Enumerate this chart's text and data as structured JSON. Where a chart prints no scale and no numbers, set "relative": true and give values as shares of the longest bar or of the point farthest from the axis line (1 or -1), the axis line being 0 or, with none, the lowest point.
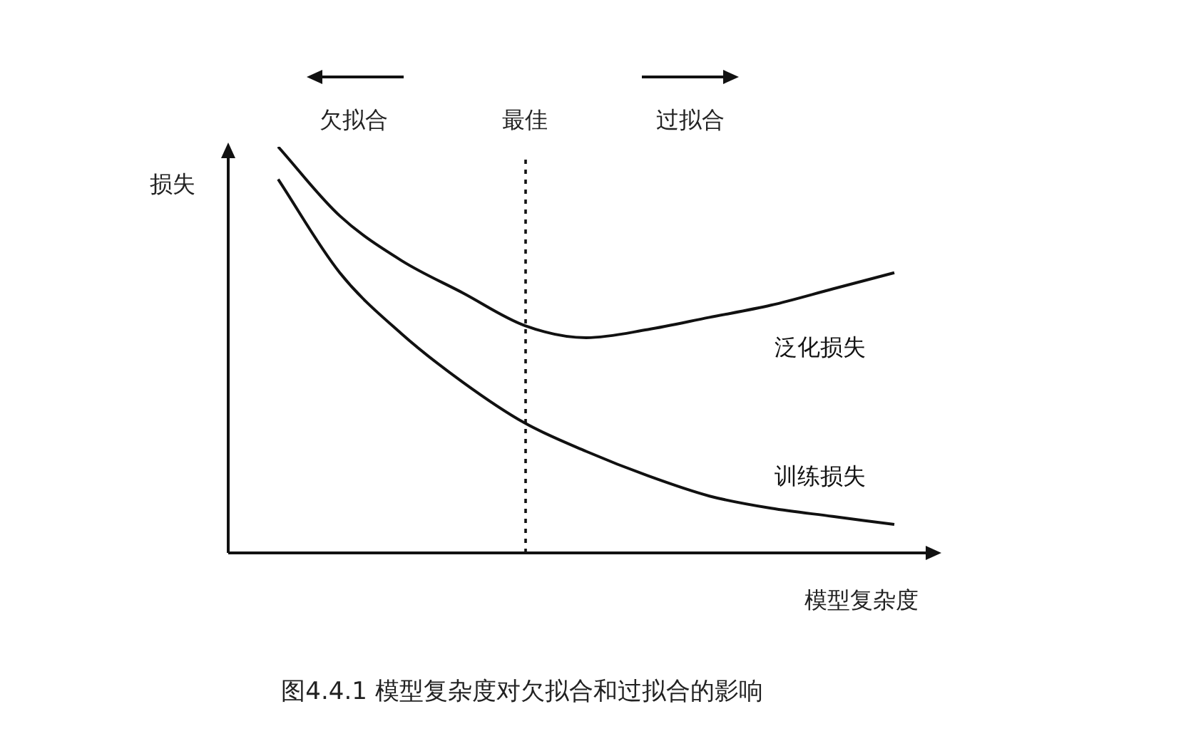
{
  "chart_data": {
    "type": "line",
    "relative": true,
    "xlabel": "模型复杂度",
    "ylabel": "损失",
    "categories": [
      null,
      null,
      null,
      null,
      null,
      null,
      null,
      null,
      null,
      null,
      null
    ],
    "series": [
      {
        "name": "泛化损失",
        "color": "#111111",
        "values": [
          1,
          0.83,
          0.72,
          0.64,
          0.56,
          0.53,
          0.55,
          0.58,
          0.61,
          0.65,
          0.69
        ]
      },
      {
        "name": "训练损失",
        "color": "#111111",
        "values": [
          0.92,
          0.69,
          0.54,
          0.42,
          0.32,
          0.25,
          0.19,
          0.14,
          0.11,
          0.09,
          0.07
        ]
      }
    ],
    "annotations": [
      "欠拟合",
      "过拟合",
      "图4.4.1 模型复杂度对欠拟合和过拟合的影响",
      "最佳"
    ],
    "legend": false,
    "grid": false,
    "marker": "none",
    "line_style": "solid"
  }
}
